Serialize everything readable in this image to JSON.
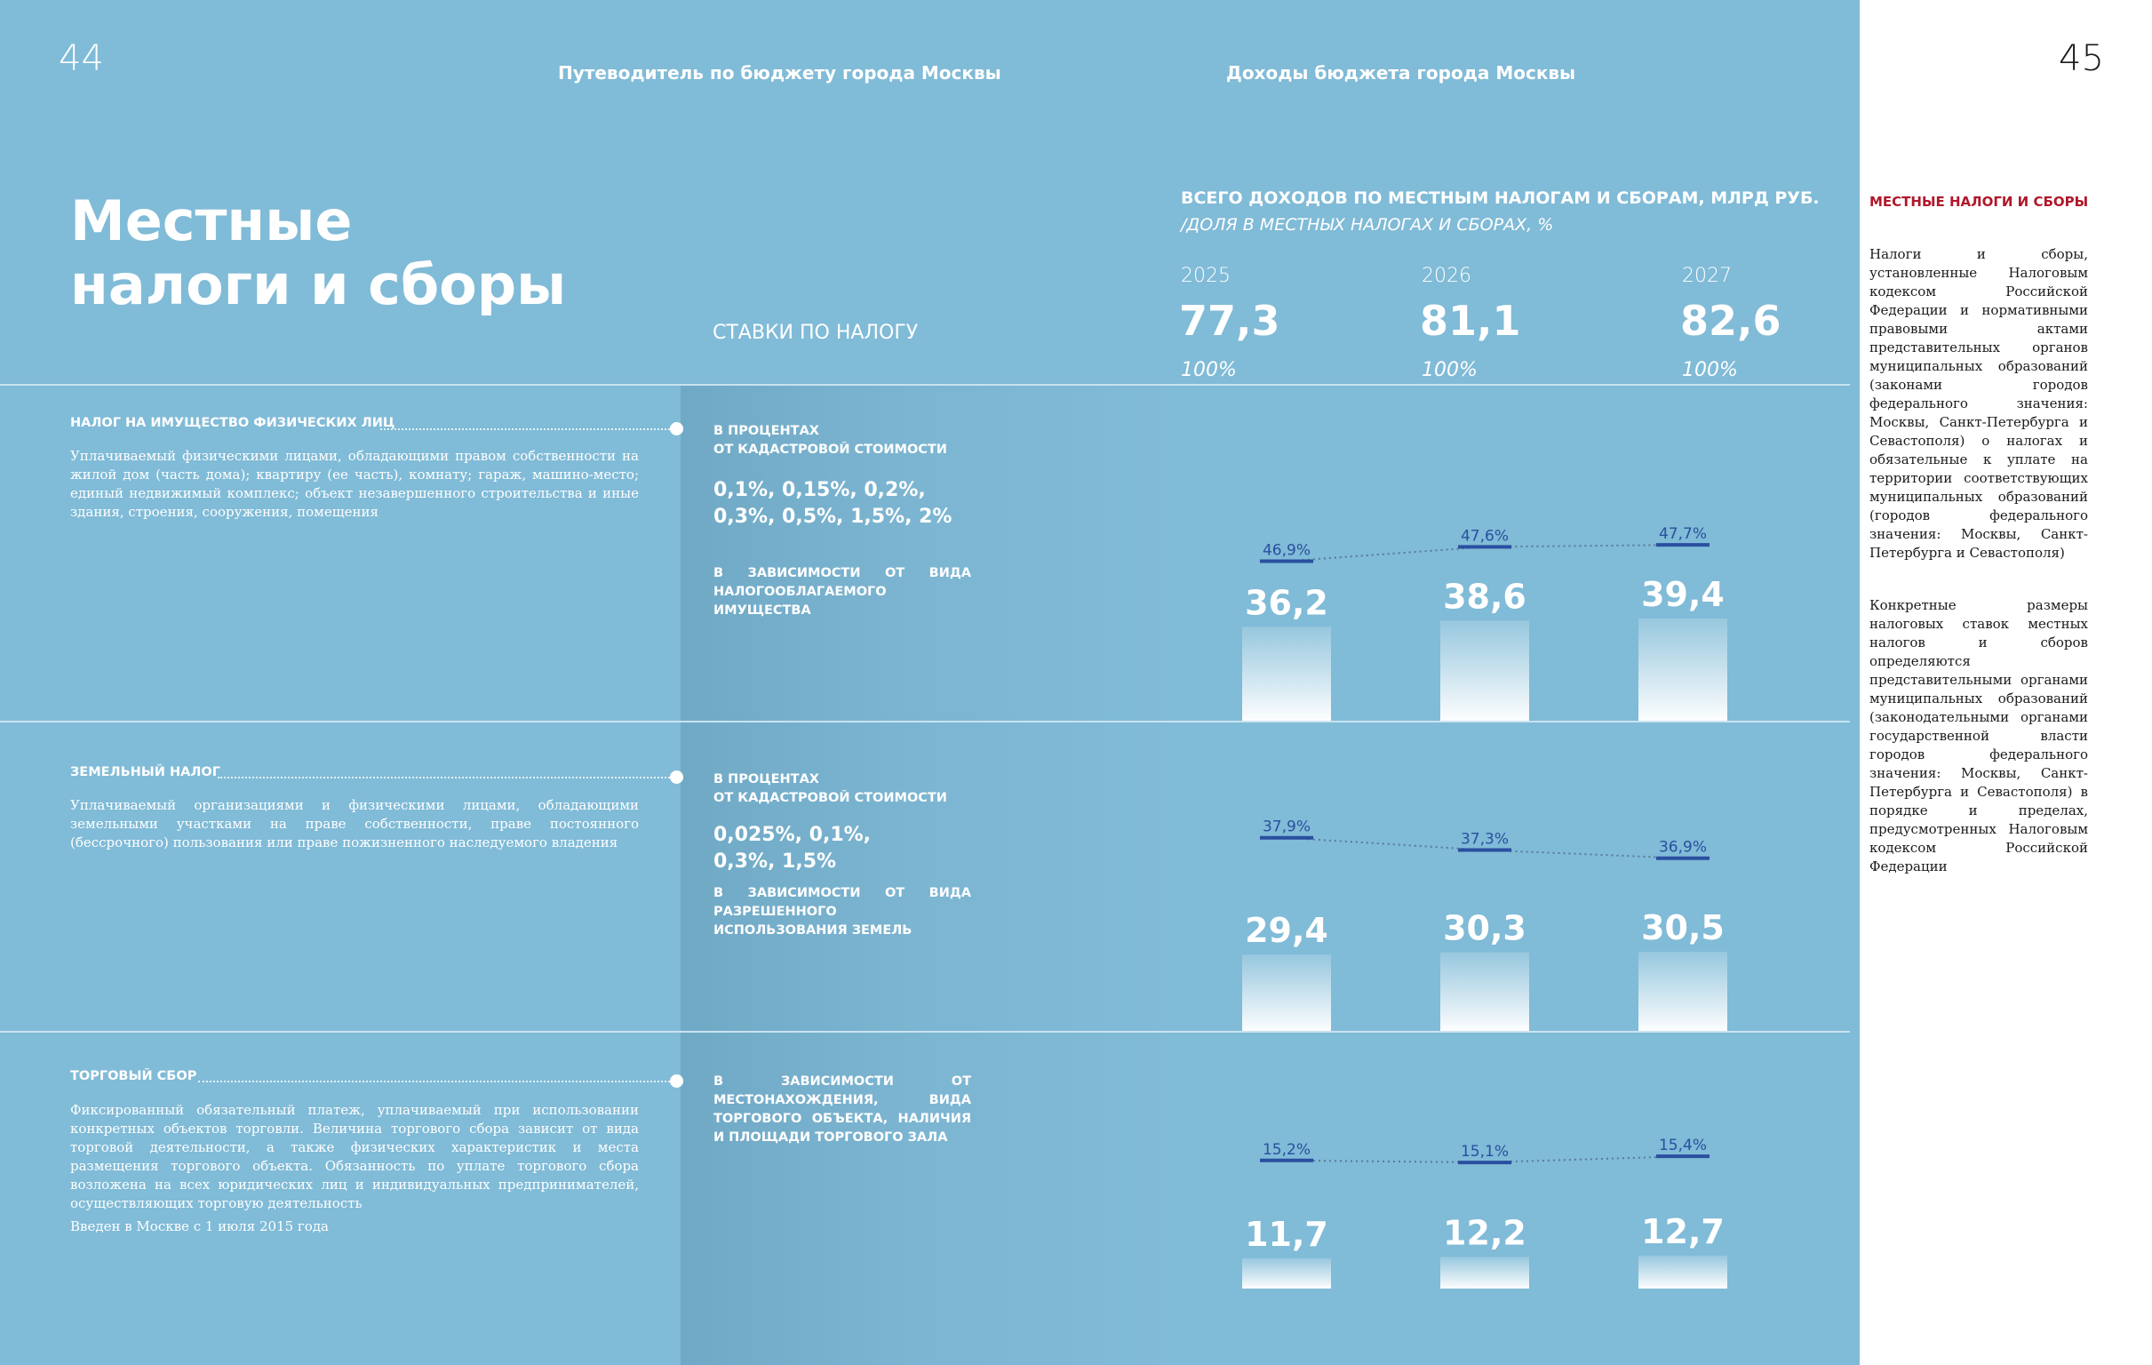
{
  "page_left_number": "44",
  "page_right_number": "45",
  "running_left": "Путеводитель по бюджету города Москвы",
  "running_right": "Доходы бюджета города Москвы",
  "title_line1": "Местные",
  "title_line2": "налоги и сборы",
  "rates_header": "СТАВКИ ПО НАЛОГУ",
  "chart_header_line1": "ВСЕГО ДОХОДОВ ПО МЕСТНЫМ НАЛОГАМ И СБОРАМ, МЛРД РУБ.",
  "chart_header_line2": "/ДОЛЯ В МЕСТНЫХ НАЛОГАХ И СБОРАХ, %",
  "years": [
    "2025",
    "2026",
    "2027"
  ],
  "totals": [
    "77,3",
    "81,1",
    "82,6"
  ],
  "total_shares": [
    "100%",
    "100%",
    "100%"
  ],
  "taxes": [
    {
      "title": "НАЛОГ НА ИМУЩЕСТВО ФИЗИЧЕСКИХ ЛИЦ",
      "description": "Уплачиваемый физическими лицами, обладающими правом собственности на жилой дом (часть дома); квартиру (ее часть), комнату; гараж, машино-место; единый недвижимый комплекс; объект незавершенного строительства и иные здания, строения, сооружения, помещения",
      "rate_label_line1": "В ПРОЦЕНТАХ",
      "rate_label_line2": "ОТ КАДАСТРОВОЙ СТОИМОСТИ",
      "rate_values_line1": "0,1%, 0,15%, 0,2%,",
      "rate_values_line2": "0,3%, 0,5%, 1,5%, 2%",
      "rate_note": "В ЗАВИСИМОСТИ ОТ ВИДА НАЛОГООБЛАГАЕМОГО ИМУЩЕСТВА"
    },
    {
      "title": "ЗЕМЕЛЬНЫЙ НАЛОГ",
      "description": "Уплачиваемый организациями и физическими лицами, обладающими земельными участками на праве собственности, праве постоянного (бессрочного) пользования или праве пожизненного наследуемого владения",
      "rate_label_line1": "В ПРОЦЕНТАХ",
      "rate_label_line2": "ОТ КАДАСТРОВОЙ СТОИМОСТИ",
      "rate_values_line1": "0,025%, 0,1%,",
      "rate_values_line2": "0,3%, 1,5%",
      "rate_note": "В ЗАВИСИМОСТИ ОТ ВИДА РАЗРЕШЕННОГО ИСПОЛЬЗОВАНИЯ ЗЕМЕЛЬ"
    },
    {
      "title": "ТОРГОВЫЙ СБОР",
      "description": "Фиксированный обязательный платеж, уплачиваемый при использовании конкретных объектов торговли. Величина торгового сбора зависит от вида торговой деятельности, а также физических характеристик и места размещения торгового объекта. Обязанность по уплате торгового сбора возложена на всех юридических лиц и индивидуальных предпринимателей, осуществляющих торговую деятельность",
      "introduced": "Введен в Москве с 1 июля 2015 года",
      "rate_note": "В ЗАВИСИМОСТИ ОТ МЕСТОНАХОЖДЕНИЯ, ВИДА ТОРГОВОГО ОБЪЕКТА, НАЛИЧИЯ И ПЛОЩАДИ ТОРГОВОГО ЗАЛА"
    }
  ],
  "chart_data": {
    "type": "bar",
    "title": "Всего доходов по местным налогам и сборам, млрд руб. / доля в местных налогах и сборах, %",
    "categories": [
      "2025",
      "2026",
      "2027"
    ],
    "totals": [
      77.3,
      81.1,
      82.6
    ],
    "series": [
      {
        "name": "Налог на имущество физических лиц",
        "values": [
          36.2,
          38.6,
          39.4
        ],
        "value_labels": [
          "36,2",
          "38,6",
          "39,4"
        ],
        "shares": [
          46.9,
          47.6,
          47.7
        ],
        "share_labels": [
          "46,9%",
          "47,6%",
          "47,7%"
        ]
      },
      {
        "name": "Земельный налог",
        "values": [
          29.4,
          30.3,
          30.5
        ],
        "value_labels": [
          "29,4",
          "30,3",
          "30,5"
        ],
        "shares": [
          37.9,
          37.3,
          36.9
        ],
        "share_labels": [
          "37,9%",
          "37,3%",
          "36,9%"
        ]
      },
      {
        "name": "Торговый сбор",
        "values": [
          11.7,
          12.2,
          12.7
        ],
        "value_labels": [
          "11,7",
          "12,2",
          "12,7"
        ],
        "shares": [
          15.2,
          15.1,
          15.4
        ],
        "share_labels": [
          "15,2%",
          "15,1%",
          "15,4%"
        ]
      }
    ],
    "colors": {
      "bar_top": "#ffffff",
      "bar_bottom_alpha": "#ffffff",
      "share_marker": "#2a4fa0",
      "share_text": "#2a4fa0",
      "connector": "#5a7a95"
    }
  },
  "right_panel": {
    "title": "МЕСТНЫЕ НАЛОГИ И СБОРЫ",
    "paragraph1": "Налоги и сборы, установленные Налоговым кодексом Российской Федерации и нормативными правовыми актами представительных органов муниципальных образований (законами городов федерального значения: Москвы, Санкт-Петербурга и Севастополя) о налогах и обязательные к уплате на территории соответствующих муниципальных образований (городов федерального значения: Москвы, Санкт-Петербурга и Севастополя)",
    "paragraph2": "Конкретные размеры налоговых ставок местных налогов и сборов определяются представительными органами муниципальных образований (законодательными органами государственной власти городов федерального значения: Москвы, Санкт-Петербурга и Севастополя) в порядке и пределах, предусмотренных Налоговым кодексом Российской Федерации"
  }
}
